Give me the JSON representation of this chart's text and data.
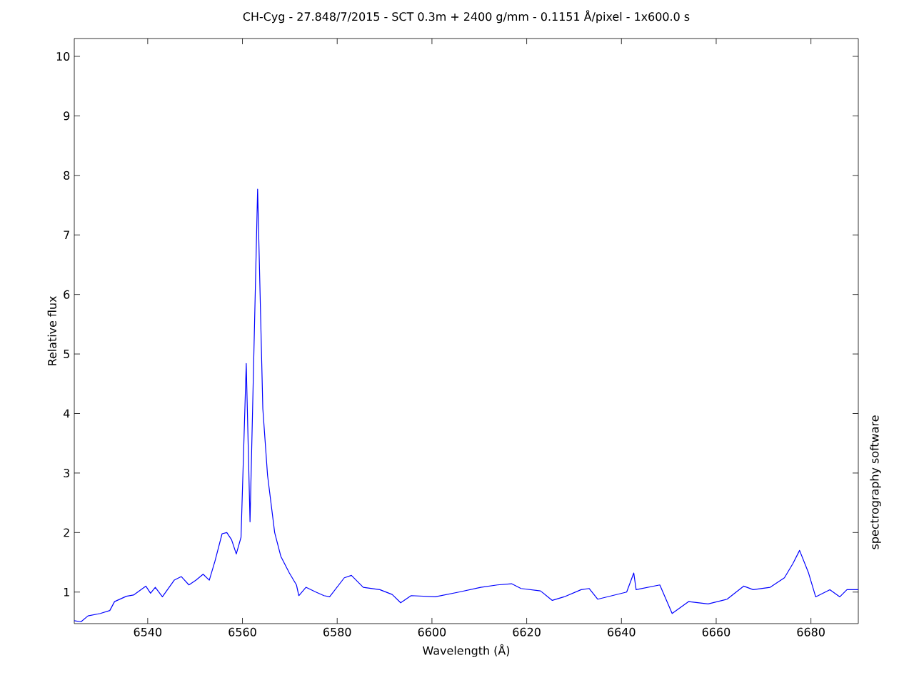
{
  "chart_data": {
    "type": "line",
    "title": "CH-Cyg - 27.848/7/2015 - SCT 0.3m + 2400 g/mm - 0.1151 Å/pixel - 1x600.0 s",
    "xlabel": "Wavelength (Å)",
    "ylabel": "Relative flux",
    "annotations": [
      "spectrography software"
    ],
    "xlim": [
      6524.5,
      6690
    ],
    "ylim": [
      0.47,
      10.3
    ],
    "xticks": [
      6540,
      6560,
      6580,
      6600,
      6620,
      6640,
      6660,
      6680
    ],
    "yticks": [
      1,
      2,
      3,
      4,
      5,
      6,
      7,
      8,
      9,
      10
    ],
    "grid": false,
    "series": [
      {
        "color": "#0000ff",
        "x": [
          6524.5,
          6525.9,
          6527.4,
          6530,
          6532,
          6533,
          6535.5,
          6537,
          6539.6,
          6540.6,
          6541.6,
          6543.1,
          6545.6,
          6547.1,
          6548.7,
          6550.2,
          6551.7,
          6553,
          6554.2,
          6555.7,
          6556.7,
          6557.7,
          6558.7,
          6559.7,
          6560.8,
          6561.6,
          6563.2,
          6564.3,
          6565.3,
          6566.8,
          6568.1,
          6569.9,
          6571.4,
          6571.9,
          6573.4,
          6575.5,
          6577.2,
          6578.4,
          6581.5,
          6583,
          6585.5,
          6589,
          6591.6,
          6593.4,
          6595.6,
          6600.7,
          6605.7,
          6610.3,
          6613.8,
          6616.8,
          6618.8,
          6622.9,
          6625.4,
          6627.9,
          6631.5,
          6633.2,
          6635,
          6641.1,
          6642.6,
          6643.1,
          6648.1,
          6650.7,
          6654.2,
          6658.3,
          6662.3,
          6665.8,
          6667.8,
          6671.4,
          6674.4,
          6676.2,
          6677.6,
          6679.5,
          6681,
          6684,
          6686.1,
          6687.6,
          6690
        ],
        "values": [
          0.52,
          0.5,
          0.6,
          0.64,
          0.69,
          0.84,
          0.93,
          0.95,
          1.1,
          0.98,
          1.08,
          0.92,
          1.2,
          1.26,
          1.12,
          1.2,
          1.3,
          1.2,
          1.52,
          1.98,
          2.0,
          1.88,
          1.64,
          1.92,
          4.84,
          2.18,
          7.77,
          4.08,
          2.96,
          2.0,
          1.6,
          1.32,
          1.12,
          0.94,
          1.08,
          1.0,
          0.94,
          0.92,
          1.24,
          1.28,
          1.08,
          1.04,
          0.96,
          0.82,
          0.94,
          0.92,
          1.0,
          1.08,
          1.12,
          1.14,
          1.06,
          1.02,
          0.86,
          0.92,
          1.04,
          1.06,
          0.88,
          1.0,
          1.32,
          1.04,
          1.12,
          0.64,
          0.84,
          0.8,
          0.88,
          1.1,
          1.04,
          1.08,
          1.24,
          1.48,
          1.7,
          1.32,
          0.92,
          1.04,
          0.92,
          1.04,
          1.04
        ]
      }
    ]
  }
}
